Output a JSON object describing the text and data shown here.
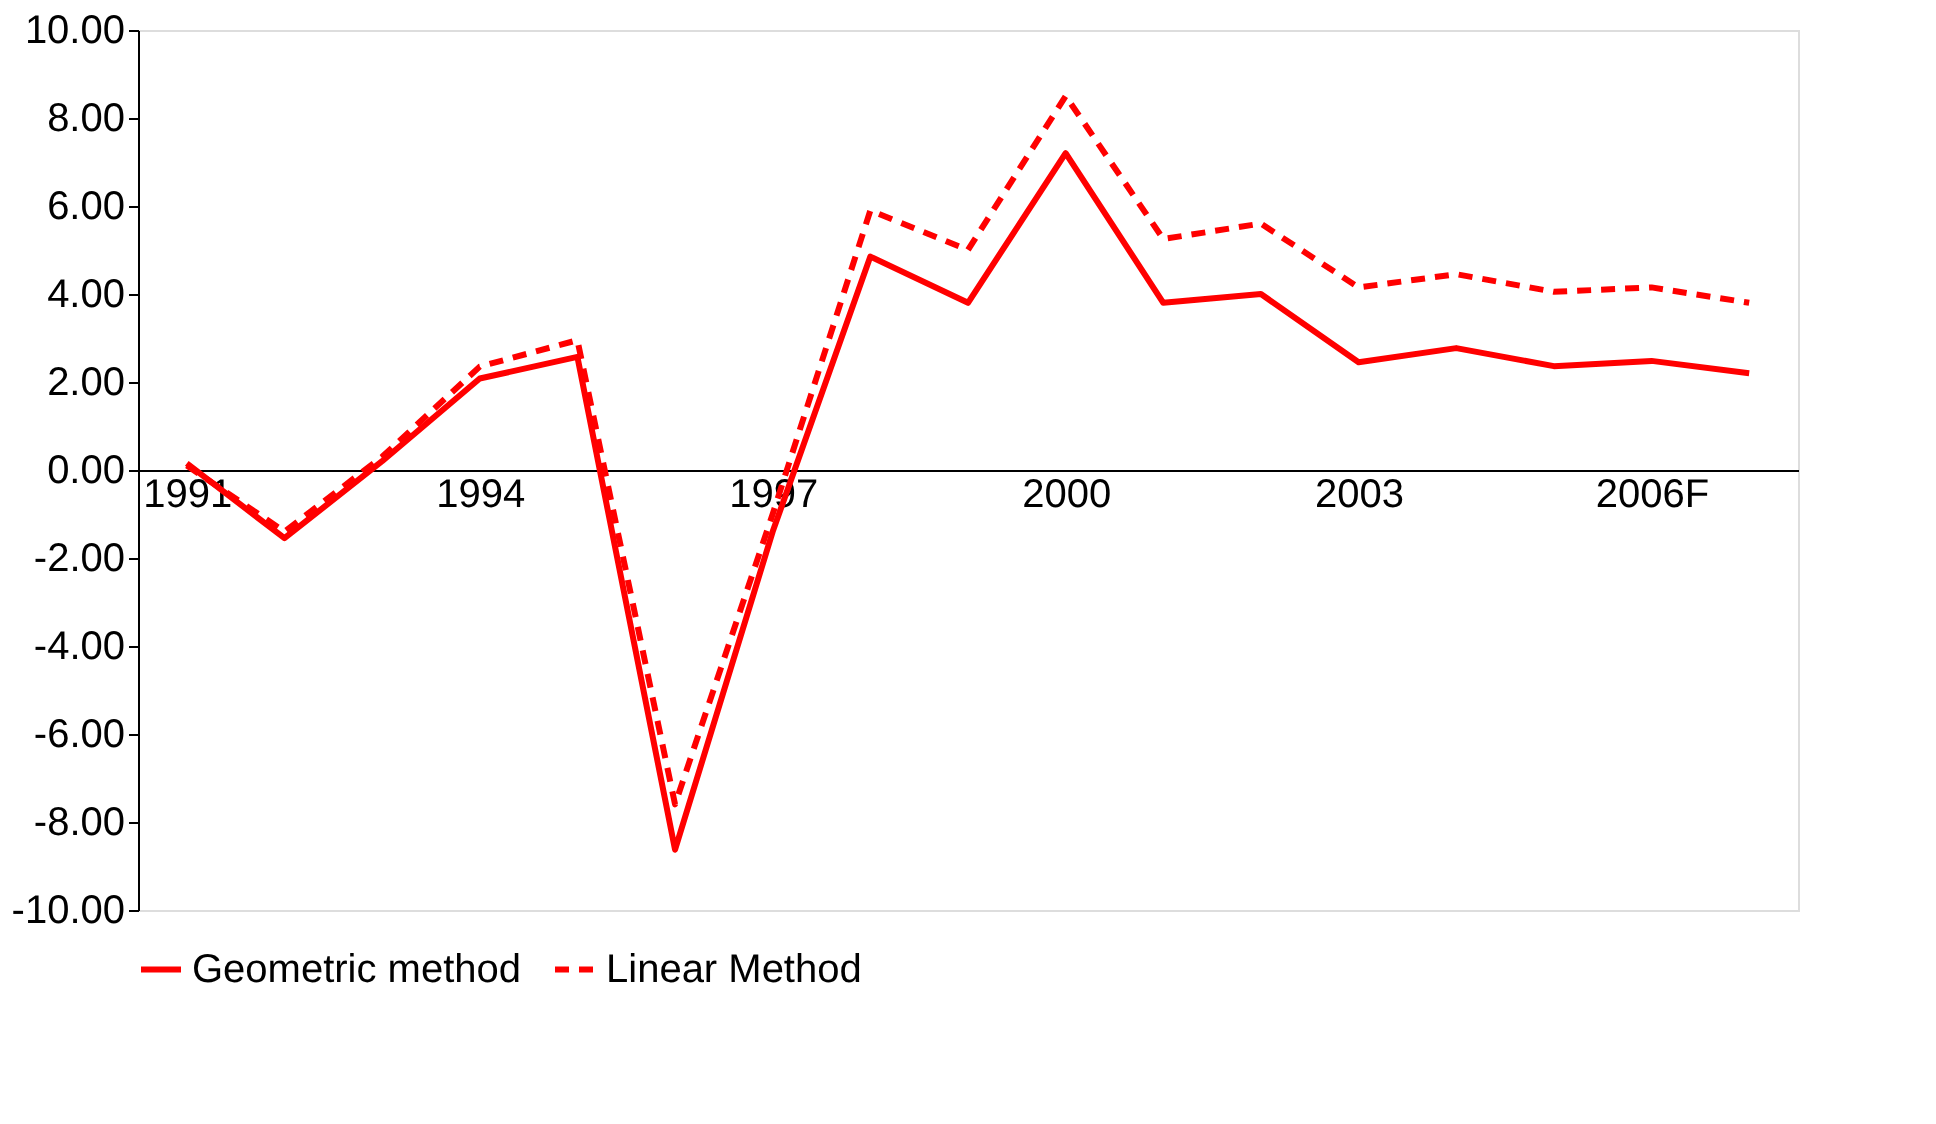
{
  "chart_data": {
    "type": "line",
    "categories": [
      "1991",
      null,
      null,
      "1994",
      null,
      null,
      "1997",
      null,
      null,
      "2000",
      null,
      null,
      "2003",
      null,
      null,
      "2006F",
      null
    ],
    "series": [
      {
        "name": "Geometric method",
        "color": "#ff0000",
        "line_style": "solid",
        "values": [
          0.15,
          -1.55,
          0.2,
          2.08,
          2.57,
          -8.63,
          -1.4,
          4.85,
          3.8,
          7.2,
          3.8,
          4.0,
          2.45,
          2.77,
          2.36,
          2.48,
          2.2
        ]
      },
      {
        "name": "Linear Method",
        "color": "#ff0000",
        "line_style": "dashed",
        "values": [
          0.1,
          -1.4,
          0.3,
          2.35,
          2.95,
          -7.6,
          -1.0,
          5.9,
          5.0,
          8.5,
          5.25,
          5.6,
          4.15,
          4.45,
          4.05,
          4.15,
          3.8
        ]
      }
    ],
    "ylim": [
      -10,
      10
    ],
    "yticks": [
      {
        "value": -10,
        "label": "-10.00"
      },
      {
        "value": -8,
        "label": "-8.00"
      },
      {
        "value": -6,
        "label": "-6.00"
      },
      {
        "value": -4,
        "label": "-4.00"
      },
      {
        "value": -2,
        "label": "-2.00"
      },
      {
        "value": 0,
        "label": "0.00"
      },
      {
        "value": 2,
        "label": "2.00"
      },
      {
        "value": 4,
        "label": "4.00"
      },
      {
        "value": 6,
        "label": "6.00"
      },
      {
        "value": 8,
        "label": "8.00"
      },
      {
        "value": 10,
        "label": "10.00"
      }
    ],
    "grid": false,
    "legend": "bottom",
    "marker": "none"
  }
}
